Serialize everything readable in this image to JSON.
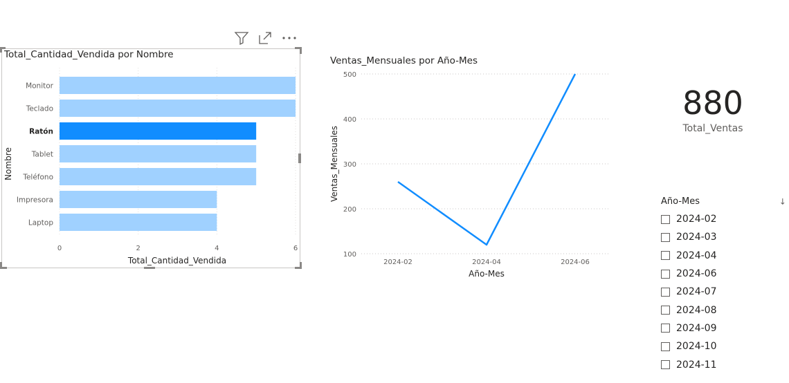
{
  "bar_visual": {
    "title": "Total_Cantidad_Vendida por Nombre",
    "header_icons": [
      "filter-icon",
      "focus-mode-icon",
      "more-options-icon"
    ],
    "colors": {
      "bar": "#a0d1ff",
      "highlight": "#118dff"
    }
  },
  "line_visual": {
    "title": "Ventas_Mensuales por Año-Mes",
    "colors": {
      "line": "#118dff"
    }
  },
  "card": {
    "value": "880",
    "label": "Total_Ventas"
  },
  "slicer": {
    "title": "Año-Mes",
    "items": [
      "2024-02",
      "2024-03",
      "2024-04",
      "2024-06",
      "2024-07",
      "2024-08",
      "2024-09",
      "2024-10",
      "2024-11"
    ]
  },
  "chart_data": [
    {
      "type": "bar",
      "orientation": "horizontal",
      "title": "Total_Cantidad_Vendida por Nombre",
      "xlabel": "Total_Cantidad_Vendida",
      "ylabel": "Nombre",
      "categories": [
        "Monitor",
        "Teclado",
        "Ratón",
        "Tablet",
        "Teléfono",
        "Impresora",
        "Laptop"
      ],
      "values": [
        6,
        6,
        5,
        5,
        5,
        4,
        4
      ],
      "highlighted": "Ratón",
      "xlim": [
        0,
        6
      ],
      "xticks": [
        0,
        2,
        4,
        6
      ],
      "grid": true
    },
    {
      "type": "line",
      "title": "Ventas_Mensuales por Año-Mes",
      "xlabel": "Año-Mes",
      "ylabel": "Ventas_Mensuales",
      "x": [
        "2024-02",
        "2024-04",
        "2024-06"
      ],
      "values": [
        260,
        120,
        500
      ],
      "ylim": [
        100,
        500
      ],
      "yticks": [
        100,
        200,
        300,
        400,
        500
      ],
      "xticks": [
        "2024-02",
        "2024-04",
        "2024-06"
      ],
      "grid": true
    }
  ]
}
